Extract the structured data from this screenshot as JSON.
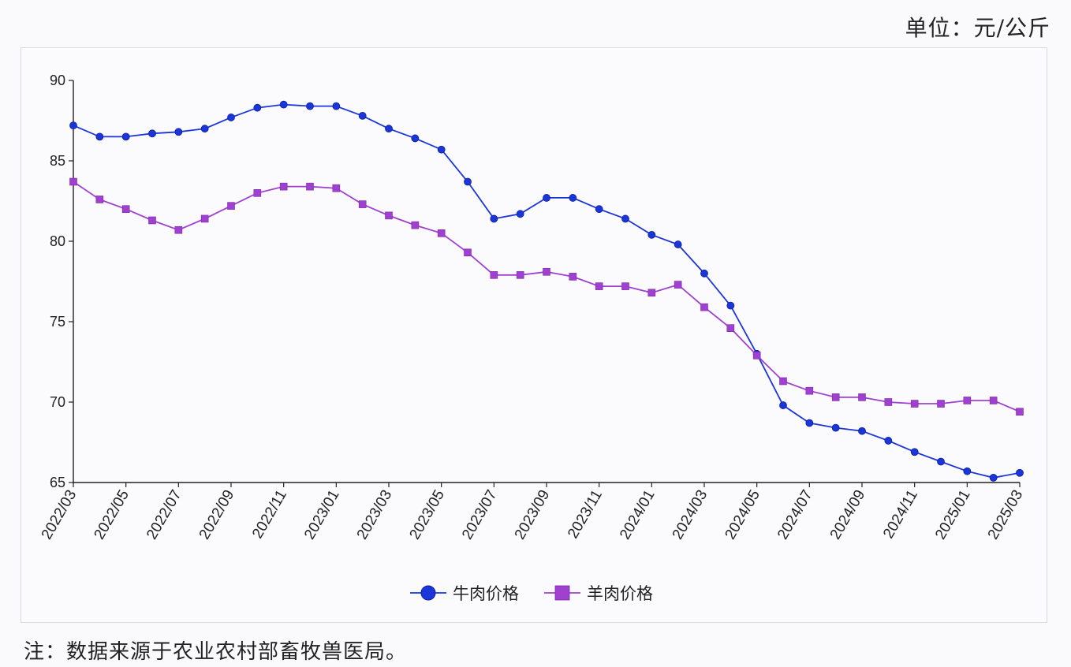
{
  "unit_label": "单位：元/公斤",
  "note": "注：数据来源于农业农村部畜牧兽医局。",
  "colors": {
    "beef": "#1a36d8",
    "mutton": "#a040d0"
  },
  "chart_data": {
    "type": "line",
    "title": "",
    "xlabel": "",
    "ylabel": "",
    "ylim": [
      65,
      90
    ],
    "yticks": [
      65,
      70,
      75,
      80,
      85,
      90
    ],
    "x": [
      "2022/03",
      "2022/04",
      "2022/05",
      "2022/06",
      "2022/07",
      "2022/08",
      "2022/09",
      "2022/10",
      "2022/11",
      "2022/12",
      "2023/01",
      "2023/02",
      "2023/03",
      "2023/04",
      "2023/05",
      "2023/06",
      "2023/07",
      "2023/08",
      "2023/09",
      "2023/10",
      "2023/11",
      "2023/12",
      "2024/01",
      "2024/02",
      "2024/03",
      "2024/04",
      "2024/05",
      "2024/06",
      "2024/07",
      "2024/08",
      "2024/09",
      "2024/10",
      "2024/11",
      "2024/12",
      "2025/01",
      "2025/02",
      "2025/03"
    ],
    "xtick_labels": [
      "2022/03",
      "2022/05",
      "2022/07",
      "2022/09",
      "2022/11",
      "2023/01",
      "2023/03",
      "2023/05",
      "2023/07",
      "2023/09",
      "2023/11",
      "2024/01",
      "2024/03",
      "2024/05",
      "2024/07",
      "2024/09",
      "2024/11",
      "2025/01",
      "2025/03"
    ],
    "legend_position": "bottom-center",
    "grid": false,
    "series": [
      {
        "name": "牛肉价格",
        "marker": "circle",
        "values": [
          87.2,
          86.5,
          86.5,
          86.7,
          86.8,
          87.0,
          87.7,
          88.3,
          88.5,
          88.4,
          88.4,
          87.8,
          87.0,
          86.4,
          85.7,
          83.7,
          81.4,
          81.7,
          82.7,
          82.7,
          82.0,
          81.4,
          80.4,
          79.8,
          78.0,
          76.0,
          73.0,
          69.8,
          68.7,
          68.4,
          68.2,
          67.6,
          66.9,
          66.3,
          65.7,
          65.3,
          65.6
        ]
      },
      {
        "name": "羊肉价格",
        "marker": "square",
        "values": [
          83.7,
          82.6,
          82.0,
          81.3,
          80.7,
          81.4,
          82.2,
          83.0,
          83.4,
          83.4,
          83.3,
          82.3,
          81.6,
          81.0,
          80.5,
          79.3,
          77.9,
          77.9,
          78.1,
          77.8,
          77.2,
          77.2,
          76.8,
          77.3,
          75.9,
          74.6,
          72.9,
          71.3,
          70.7,
          70.3,
          70.3,
          70.0,
          69.9,
          69.9,
          70.1,
          70.1,
          69.4
        ]
      }
    ]
  }
}
